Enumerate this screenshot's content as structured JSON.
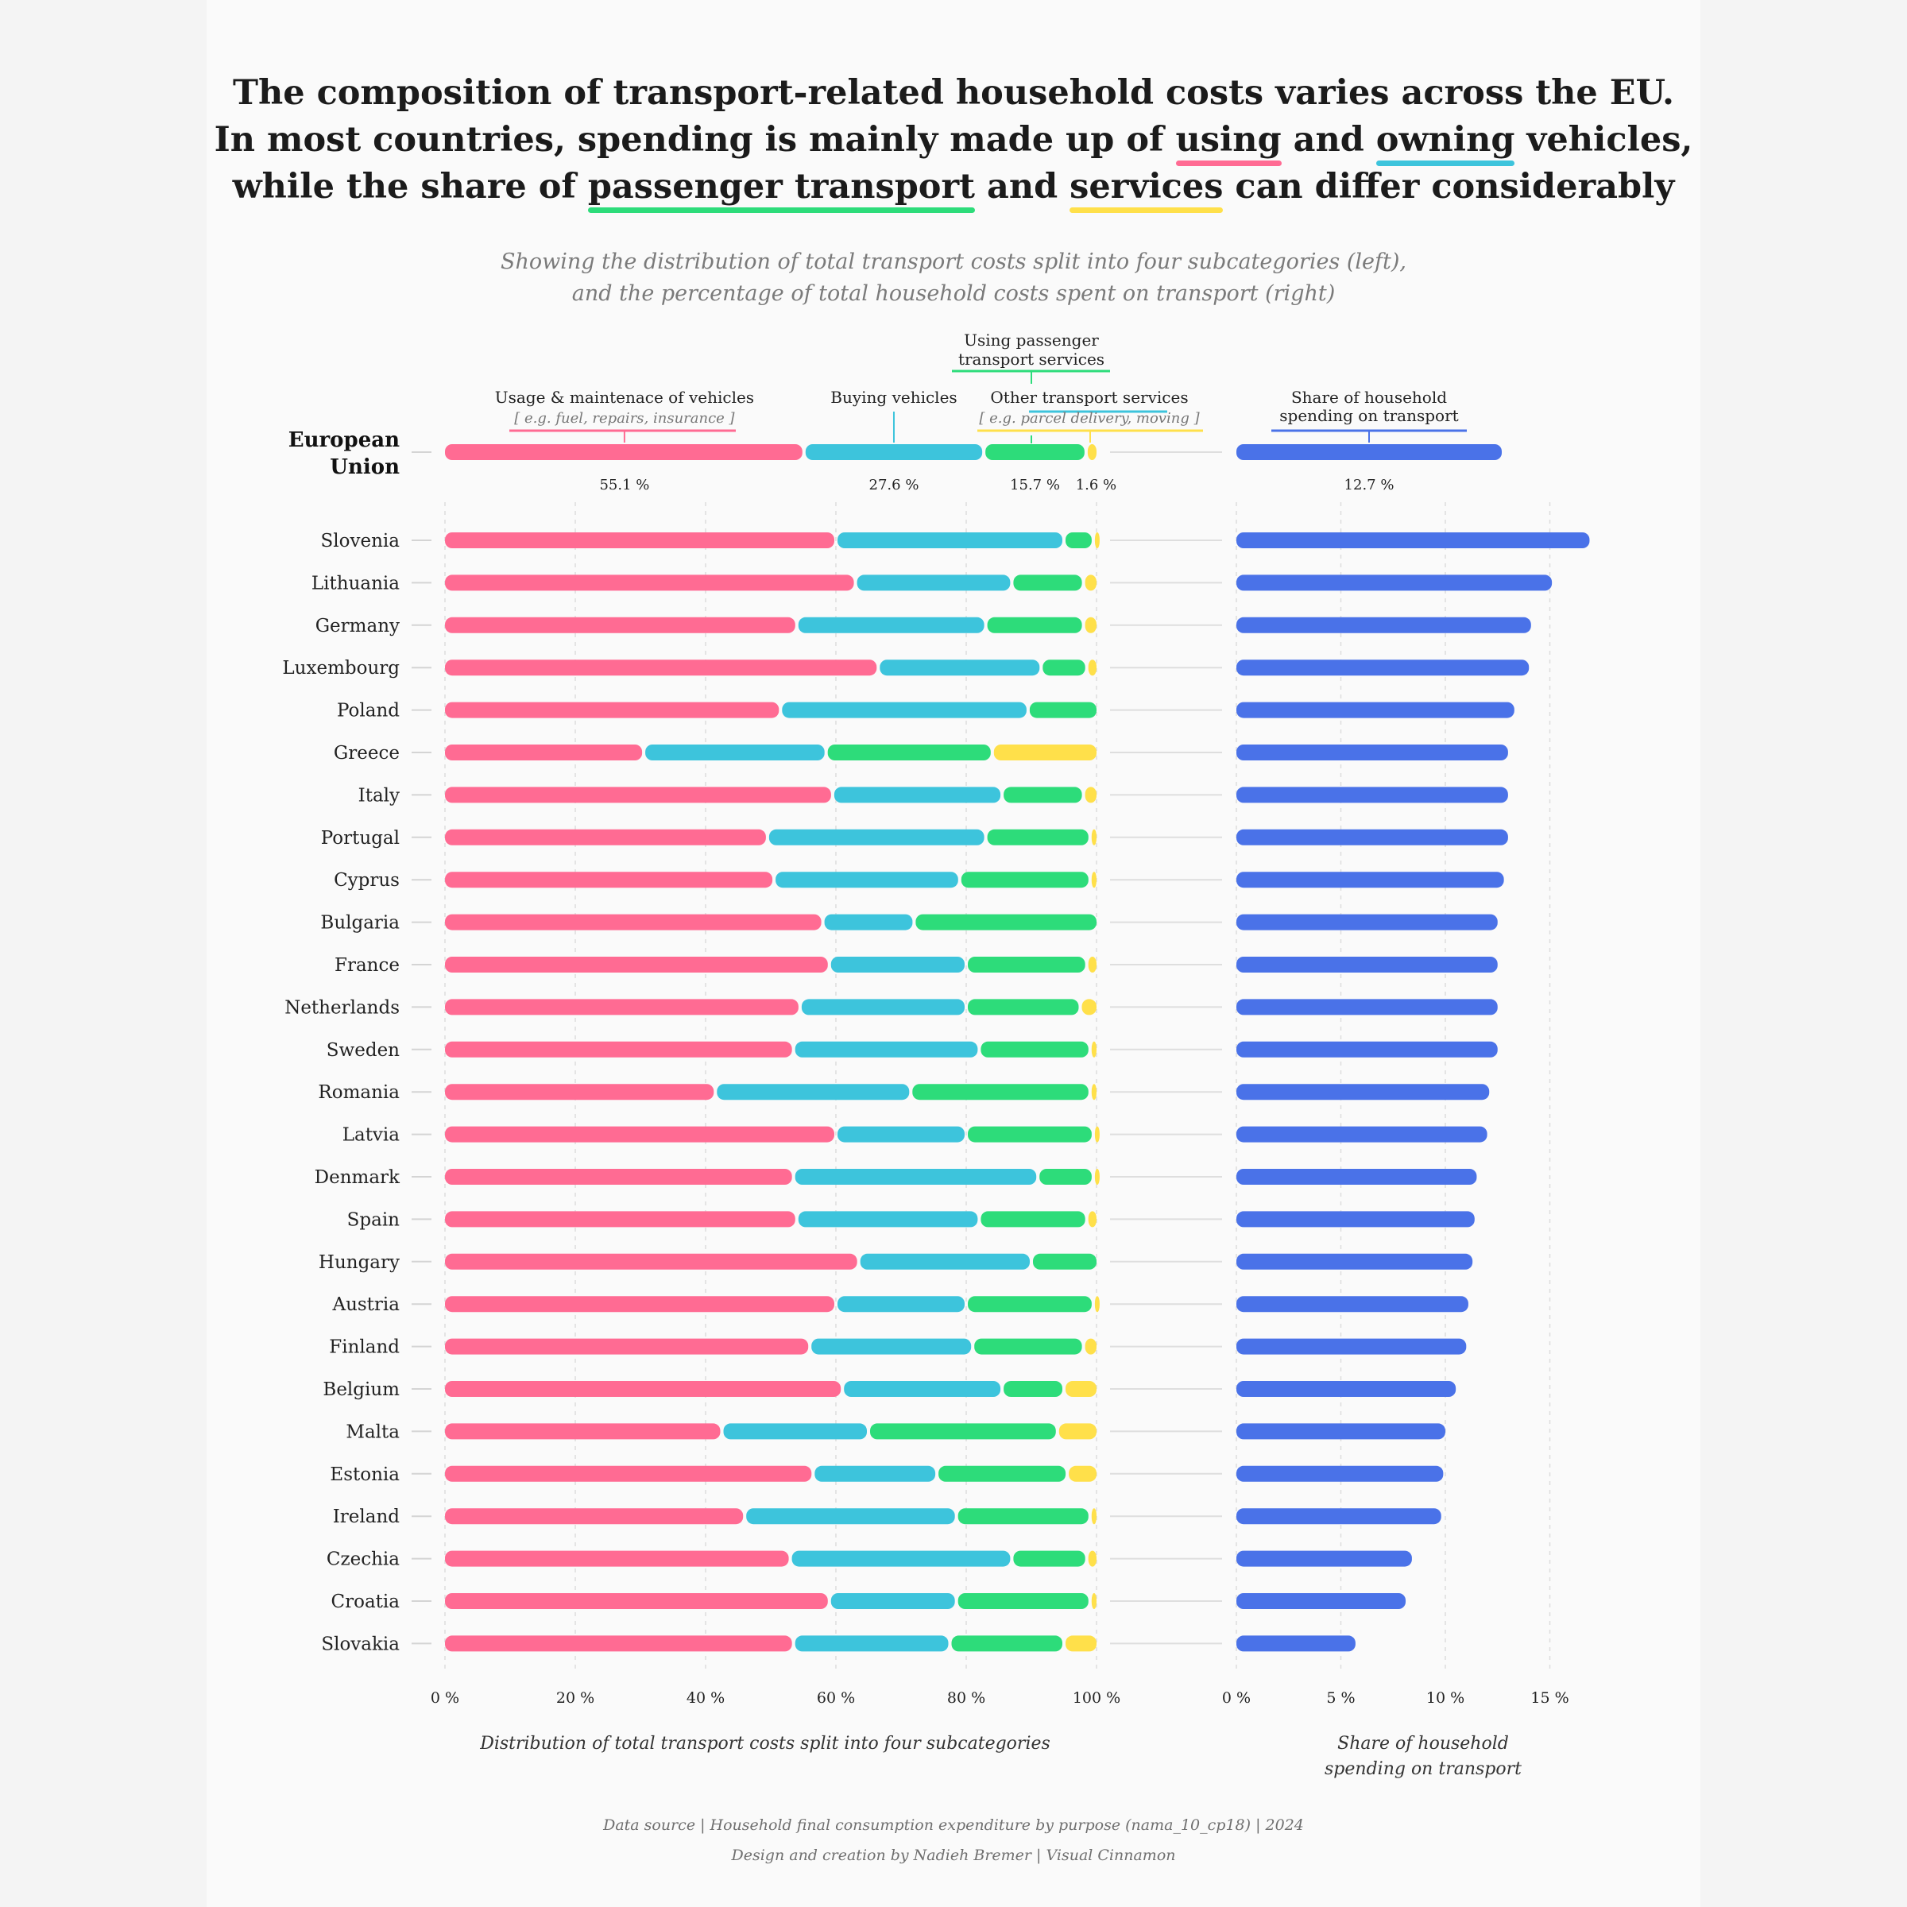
{
  "headline": {
    "line1": "The composition of transport-related household costs varies across the EU.",
    "line2_a": "In most countries, spending is mainly made up of ",
    "line2_using": "using",
    "line2_b": " and ",
    "line2_owning": "owning",
    "line2_c": " vehicles,",
    "line3_a": "while the share of ",
    "line3_passenger": "passenger transport",
    "line3_b": " and ",
    "line3_services": "services",
    "line3_c": " can differ considerably"
  },
  "subtitle": {
    "line1": "Showing the distribution of total transport costs split into four subcategories (left),",
    "line2": "and the percentage of total household costs spent on transport (right)"
  },
  "colors": {
    "using": "#ff6b93",
    "buying": "#3dc4dc",
    "passenger": "#2ddc7a",
    "services": "#ffe04a",
    "share": "#4a72e8"
  },
  "footer": {
    "source": "Data source | Household final consumption expenditure by purpose (nama_10_cp18) | 2024",
    "credit": "Design and creation by Nadieh Bremer | Visual Cinnamon"
  },
  "chart_data": [
    {
      "type": "bar",
      "stacked": true,
      "orientation": "horizontal",
      "title": "Distribution of total transport costs split into four subcategories",
      "xlim": [
        0,
        100
      ],
      "xticks": [
        "0 %",
        "20 %",
        "40 %",
        "60 %",
        "80 %",
        "100 %"
      ],
      "series_labels": [
        {
          "name": "Usage & maintenace of vehicles",
          "note": "[ e.g. fuel, repairs, insurance ]"
        },
        {
          "name": "Buying vehicles",
          "note": ""
        },
        {
          "name": "Using passenger transport services",
          "note": ""
        },
        {
          "name": "Other transport services",
          "note": "[ e.g. parcel delivery, moving ]"
        }
      ],
      "eu": {
        "label": "European Union",
        "values": [
          55.1,
          27.6,
          15.7,
          1.6
        ],
        "value_labels": [
          "55.1 %",
          "27.6 %",
          "15.7 %",
          "1.6 %"
        ]
      },
      "countries": [
        {
          "name": "Slovenia",
          "values": [
            60,
            35,
            4.5,
            0.5
          ]
        },
        {
          "name": "Lithuania",
          "values": [
            63,
            24,
            11,
            2
          ]
        },
        {
          "name": "Germany",
          "values": [
            54,
            29,
            15,
            2
          ]
        },
        {
          "name": "Luxembourg",
          "values": [
            66.5,
            25,
            7,
            1.5
          ]
        },
        {
          "name": "Poland",
          "values": [
            51.5,
            38,
            10.5,
            0
          ]
        },
        {
          "name": "Greece",
          "values": [
            30.5,
            28,
            25.5,
            16
          ]
        },
        {
          "name": "Italy",
          "values": [
            59.5,
            26,
            12.5,
            2
          ]
        },
        {
          "name": "Portugal",
          "values": [
            49.5,
            33.5,
            16,
            1
          ]
        },
        {
          "name": "Cyprus",
          "values": [
            50.5,
            28.5,
            20,
            1
          ]
        },
        {
          "name": "Bulgaria",
          "values": [
            58,
            14,
            28,
            0
          ]
        },
        {
          "name": "France",
          "values": [
            59,
            21,
            18.5,
            1.5
          ]
        },
        {
          "name": "Netherlands",
          "values": [
            54.5,
            25.5,
            17.5,
            2.5
          ]
        },
        {
          "name": "Sweden",
          "values": [
            53.5,
            28.5,
            17,
            1
          ]
        },
        {
          "name": "Romania",
          "values": [
            41.5,
            30,
            27.5,
            1
          ]
        },
        {
          "name": "Latvia",
          "values": [
            60,
            20,
            19.5,
            0.5
          ]
        },
        {
          "name": "Denmark",
          "values": [
            53.5,
            37.5,
            8.5,
            0.5
          ]
        },
        {
          "name": "Spain",
          "values": [
            54,
            28,
            16.5,
            1.5
          ]
        },
        {
          "name": "Hungary",
          "values": [
            63.5,
            26.5,
            10,
            0
          ]
        },
        {
          "name": "Austria",
          "values": [
            60,
            20,
            19.5,
            0.5
          ]
        },
        {
          "name": "Finland",
          "values": [
            56,
            25,
            17,
            2
          ]
        },
        {
          "name": "Belgium",
          "values": [
            61,
            24.5,
            9.5,
            5
          ]
        },
        {
          "name": "Malta",
          "values": [
            42.5,
            22.5,
            29,
            6
          ]
        },
        {
          "name": "Estonia",
          "values": [
            56.5,
            19,
            20,
            4.5
          ]
        },
        {
          "name": "Ireland",
          "values": [
            46,
            32.5,
            20.5,
            1
          ]
        },
        {
          "name": "Czechia",
          "values": [
            53,
            34,
            11.5,
            1.5
          ]
        },
        {
          "name": "Croatia",
          "values": [
            59,
            19.5,
            20.5,
            1
          ]
        },
        {
          "name": "Slovakia",
          "values": [
            53.5,
            24,
            17.5,
            5
          ]
        }
      ]
    },
    {
      "type": "bar",
      "orientation": "horizontal",
      "title": "Share of household spending on transport",
      "xlim": [
        0,
        17
      ],
      "xticks": [
        "0 %",
        "5 %",
        "10 %",
        "15 %"
      ],
      "series_label": "Share of household spending on transport",
      "eu": {
        "label": "European Union",
        "value": 12.7,
        "value_label": "12.7 %"
      },
      "countries": [
        {
          "name": "Slovenia",
          "value": 16.9
        },
        {
          "name": "Lithuania",
          "value": 15.1
        },
        {
          "name": "Germany",
          "value": 14.1
        },
        {
          "name": "Luxembourg",
          "value": 14.0
        },
        {
          "name": "Poland",
          "value": 13.3
        },
        {
          "name": "Greece",
          "value": 13.0
        },
        {
          "name": "Italy",
          "value": 13.0
        },
        {
          "name": "Portugal",
          "value": 13.0
        },
        {
          "name": "Cyprus",
          "value": 12.8
        },
        {
          "name": "Bulgaria",
          "value": 12.5
        },
        {
          "name": "France",
          "value": 12.5
        },
        {
          "name": "Netherlands",
          "value": 12.5
        },
        {
          "name": "Sweden",
          "value": 12.5
        },
        {
          "name": "Romania",
          "value": 12.1
        },
        {
          "name": "Latvia",
          "value": 12.0
        },
        {
          "name": "Denmark",
          "value": 11.5
        },
        {
          "name": "Spain",
          "value": 11.4
        },
        {
          "name": "Hungary",
          "value": 11.3
        },
        {
          "name": "Austria",
          "value": 11.1
        },
        {
          "name": "Finland",
          "value": 11.0
        },
        {
          "name": "Belgium",
          "value": 10.5
        },
        {
          "name": "Malta",
          "value": 10.0
        },
        {
          "name": "Estonia",
          "value": 9.9
        },
        {
          "name": "Ireland",
          "value": 9.8
        },
        {
          "name": "Czechia",
          "value": 8.4
        },
        {
          "name": "Croatia",
          "value": 8.1
        },
        {
          "name": "Slovakia",
          "value": 5.7
        }
      ]
    }
  ],
  "axis_titles": {
    "left": "Distribution of total transport costs split into four subcategories",
    "right_line1": "Share of household",
    "right_line2": "spending on transport"
  },
  "right_header": {
    "line1": "Share of household",
    "line2": "spending on transport"
  },
  "passenger_header": {
    "line1": "Using passenger",
    "line2": "transport services"
  }
}
